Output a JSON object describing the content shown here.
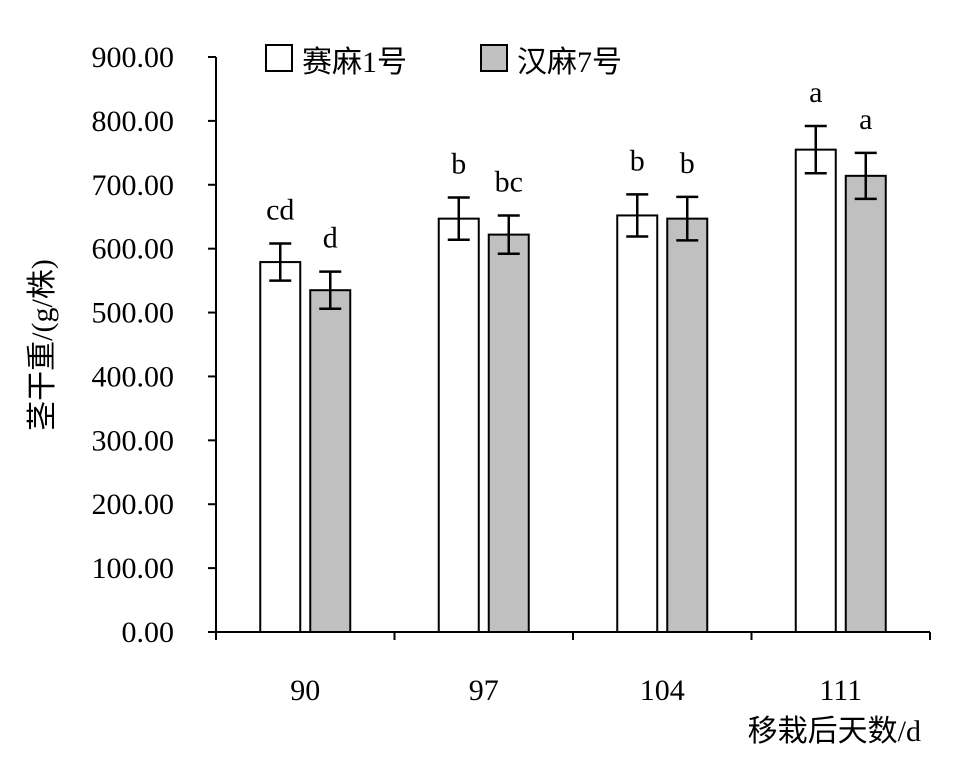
{
  "chart_data": {
    "type": "bar",
    "categories": [
      "90",
      "97",
      "104",
      "111"
    ],
    "series": [
      {
        "name": "赛麻1号",
        "color": "#ffffff",
        "values": [
          579,
          647,
          652,
          755
        ],
        "errors": [
          29,
          33,
          33,
          37
        ],
        "labels": [
          "cd",
          "b",
          "b",
          "a"
        ]
      },
      {
        "name": "汉麻7号",
        "color": "#c0c0c0",
        "values": [
          535,
          622,
          647,
          714
        ],
        "errors": [
          29,
          30,
          34,
          36
        ],
        "labels": [
          "d",
          "bc",
          "b",
          "a"
        ]
      }
    ],
    "ylim": [
      0,
      900
    ],
    "yticks": [
      "0.00",
      "100.00",
      "200.00",
      "300.00",
      "400.00",
      "500.00",
      "600.00",
      "700.00",
      "800.00",
      "900.00"
    ],
    "xlabel": "移栽后天数/d",
    "ylabel": "茎干重/(g/株)",
    "legend_position": "top-left",
    "grid": false
  }
}
